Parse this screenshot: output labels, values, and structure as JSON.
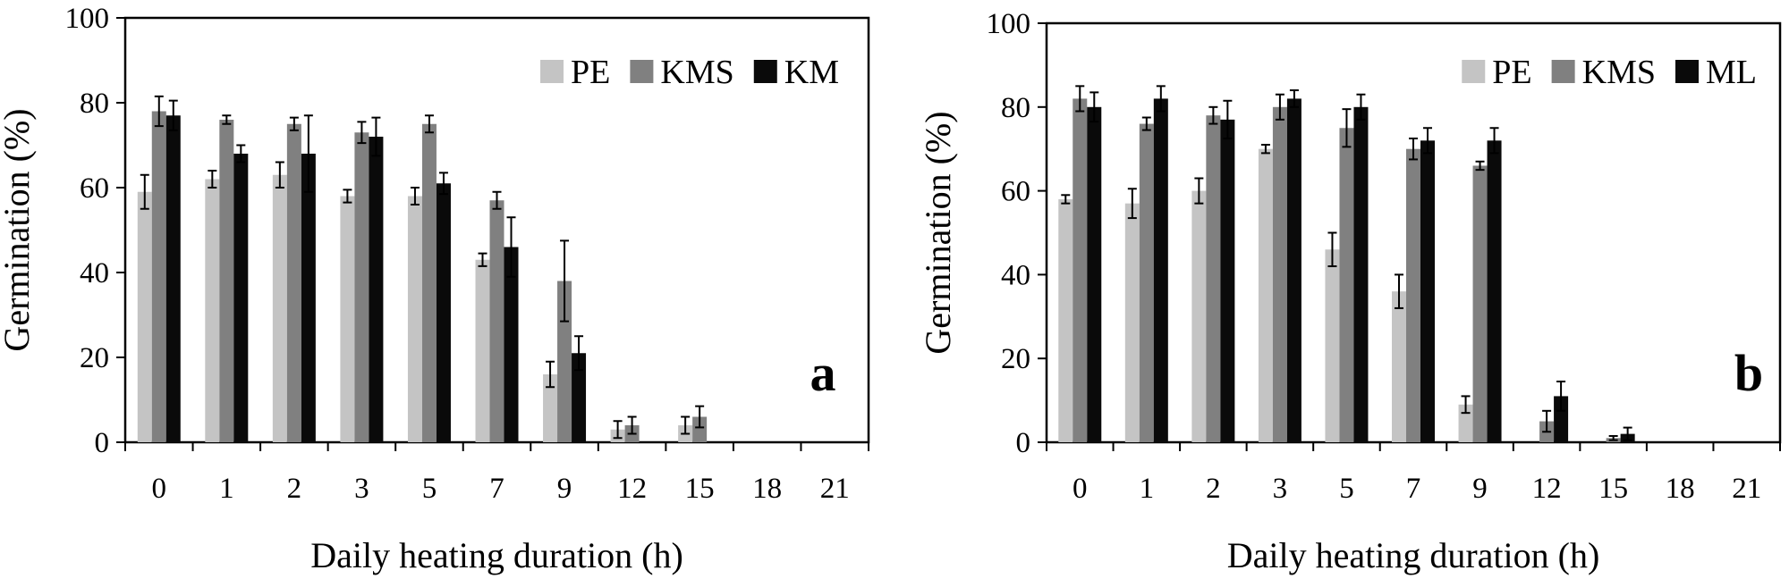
{
  "figure": {
    "background": "#ffffff"
  },
  "chart_data": [
    {
      "type": "bar",
      "panel_label": "a",
      "xlabel": "Daily heating duration (h)",
      "ylabel": "Germination (%)",
      "ylim": [
        0,
        100
      ],
      "yticks": [
        0,
        20,
        40,
        60,
        80,
        100
      ],
      "grid": false,
      "legend_position": "top-right",
      "categories": [
        "0",
        "1",
        "2",
        "3",
        "5",
        "7",
        "9",
        "12",
        "15",
        "18",
        "21"
      ],
      "series": [
        {
          "name": "PE",
          "color": "#c4c4c4",
          "values": [
            59,
            62,
            63,
            58,
            58,
            43,
            16,
            3,
            4,
            0,
            0
          ],
          "errors": [
            4,
            2,
            3,
            1.5,
            2,
            1.5,
            3,
            2,
            2,
            0,
            0
          ]
        },
        {
          "name": "KMS",
          "color": "#808080",
          "values": [
            78,
            76,
            75,
            73,
            75,
            57,
            38,
            4,
            6,
            0,
            0
          ],
          "errors": [
            3.5,
            1,
            1.5,
            2.5,
            2,
            2,
            9.5,
            2,
            2.5,
            0,
            0
          ]
        },
        {
          "name": "KM",
          "color": "#0a0a0a",
          "values": [
            77,
            68,
            68,
            72,
            61,
            46,
            21,
            0,
            0,
            0,
            0
          ],
          "errors": [
            3.5,
            2,
            9,
            4.5,
            2.5,
            7,
            4,
            0,
            0,
            0,
            0
          ]
        }
      ]
    },
    {
      "type": "bar",
      "panel_label": "b",
      "xlabel": "Daily heating duration (h)",
      "ylabel": "Germination (%)",
      "ylim": [
        0,
        100
      ],
      "yticks": [
        0,
        20,
        40,
        60,
        80,
        100
      ],
      "grid": false,
      "legend_position": "top-right",
      "categories": [
        "0",
        "1",
        "2",
        "3",
        "5",
        "7",
        "9",
        "12",
        "15",
        "18",
        "21"
      ],
      "series": [
        {
          "name": "PE",
          "color": "#c4c4c4",
          "values": [
            58,
            57,
            60,
            70,
            46,
            36,
            9,
            0,
            0,
            0,
            0
          ],
          "errors": [
            1,
            3.5,
            3,
            1,
            4,
            4,
            2,
            0,
            0,
            0,
            0
          ]
        },
        {
          "name": "KMS",
          "color": "#808080",
          "values": [
            82,
            76,
            78,
            80,
            75,
            70,
            66,
            5,
            1,
            0,
            0
          ],
          "errors": [
            3,
            1.5,
            2,
            3,
            4.5,
            2.5,
            1,
            2.5,
            0.5,
            0,
            0
          ]
        },
        {
          "name": "ML",
          "color": "#0a0a0a",
          "values": [
            80,
            82,
            77,
            82,
            80,
            72,
            72,
            11,
            2,
            0,
            0
          ],
          "errors": [
            3.5,
            3,
            4.5,
            2,
            3,
            3,
            3,
            3.5,
            1.5,
            0,
            0
          ]
        }
      ]
    }
  ]
}
